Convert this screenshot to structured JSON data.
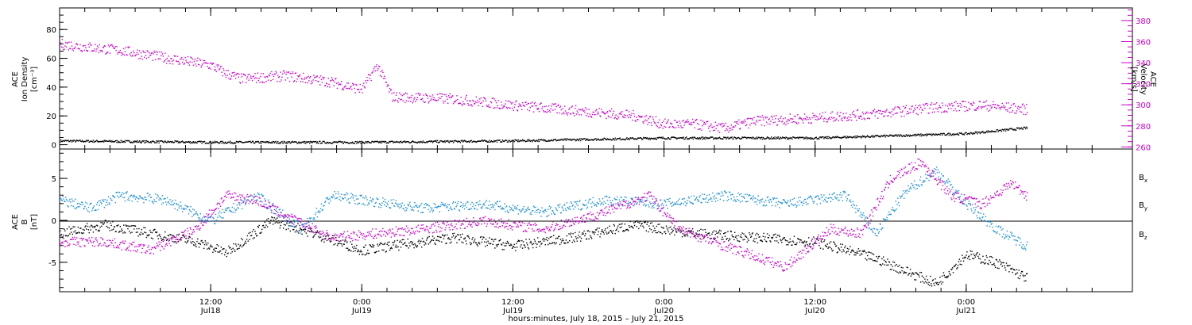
{
  "colors": {
    "black": "#000000",
    "magenta": "#cc00cc",
    "blue": "#1a8fd6"
  },
  "chart_data": [
    {
      "type": "scatter",
      "panel": "top",
      "ylabel_left": [
        "ACE",
        "Ion Density",
        "[cm⁻³]"
      ],
      "ylabel_right": [
        "ACE",
        "Velocity",
        "[km/s]"
      ],
      "ylim_left": [
        -3,
        95
      ],
      "ylim_right": [
        258,
        392
      ],
      "left_ticks": [
        "0",
        "20",
        "40",
        "60",
        "80"
      ],
      "right_ticks": [
        "260",
        "280",
        "300",
        "320",
        "340",
        "360",
        "380"
      ],
      "series": [
        {
          "axis": "left",
          "color": "black",
          "x": [
            0,
            0.5,
            1,
            1.5,
            2,
            2.5,
            3,
            3.2
          ],
          "y": [
            3,
            2,
            2,
            3,
            5,
            5,
            8,
            12
          ]
        },
        {
          "axis": "right",
          "color": "magenta",
          "x": [
            0,
            0.1,
            0.2,
            0.35,
            0.5,
            0.55,
            0.6,
            0.75,
            0.9,
            1.0,
            1.05,
            1.1,
            1.3,
            1.5,
            1.7,
            1.9,
            2.0,
            2.1,
            2.2,
            2.3,
            2.5,
            2.7,
            2.9,
            3.05,
            3.2
          ],
          "y": [
            358,
            355,
            352,
            345,
            338,
            330,
            325,
            328,
            322,
            315,
            338,
            308,
            306,
            300,
            295,
            290,
            282,
            282,
            278,
            285,
            288,
            292,
            298,
            300,
            296
          ]
        }
      ]
    },
    {
      "type": "scatter",
      "panel": "bottom",
      "ylabel_left": [
        "ACE",
        "B",
        "[nT]"
      ],
      "ylim": [
        -8.5,
        8.5
      ],
      "left_ticks": [
        "-5",
        "0",
        "5"
      ],
      "legend": [
        {
          "text": "B",
          "sub": "x",
          "color": "black"
        },
        {
          "text": "B",
          "sub": "y",
          "color": "blue"
        },
        {
          "text": "B",
          "sub": "z",
          "color": "magenta"
        }
      ],
      "series": [
        {
          "name": "Bx",
          "color": "black",
          "x": [
            0,
            0.15,
            0.3,
            0.45,
            0.55,
            0.7,
            0.8,
            1.0,
            1.1,
            1.3,
            1.5,
            1.7,
            1.9,
            2.1,
            2.3,
            2.5,
            2.7,
            2.9,
            3.0,
            3.1,
            3.2
          ],
          "y": [
            -1.5,
            -0.5,
            -1.5,
            -2.5,
            -3.8,
            0,
            -1,
            -3.5,
            -3.0,
            -2.0,
            -3.0,
            -2.0,
            -0.5,
            -1.5,
            -2.0,
            -2.5,
            -4.5,
            -7.5,
            -4.0,
            -5.0,
            -6.8
          ]
        },
        {
          "name": "By",
          "color": "blue",
          "x": [
            0,
            0.1,
            0.2,
            0.35,
            0.5,
            0.65,
            0.8,
            0.9,
            1.0,
            1.2,
            1.4,
            1.6,
            1.8,
            2.0,
            2.2,
            2.4,
            2.6,
            2.7,
            2.8,
            2.9,
            3.0,
            3.1,
            3.2
          ],
          "y": [
            2.5,
            1.5,
            3.0,
            2.5,
            0,
            3.0,
            -1,
            3.0,
            2.5,
            1.5,
            2.0,
            1.0,
            2.5,
            2.0,
            3.0,
            2.0,
            3.0,
            -1.5,
            3.5,
            6.0,
            2.0,
            -1.0,
            -3.0
          ]
        },
        {
          "name": "Bz",
          "color": "magenta",
          "x": [
            0,
            0.15,
            0.3,
            0.45,
            0.55,
            0.65,
            0.75,
            0.9,
            1.05,
            1.2,
            1.4,
            1.6,
            1.8,
            1.95,
            2.05,
            2.2,
            2.4,
            2.55,
            2.65,
            2.75,
            2.85,
            2.95,
            3.05,
            3.15,
            3.2
          ],
          "y": [
            -2.5,
            -2.5,
            -3.5,
            -1.0,
            3.0,
            2.5,
            0.5,
            -2.0,
            -1.5,
            -1.0,
            0,
            -1.0,
            1.0,
            3.0,
            -1.0,
            -3.0,
            -5.5,
            -1.0,
            -1.5,
            5.0,
            7.0,
            3.0,
            2.0,
            4.5,
            3.0
          ]
        }
      ]
    }
  ],
  "x_axis": {
    "range_days": [
      0,
      3.55
    ],
    "ticks": [
      {
        "t": 0.5,
        "time": "12:00",
        "date": "Jul18"
      },
      {
        "t": 1.0,
        "time": "0:00",
        "date": "Jul19"
      },
      {
        "t": 1.5,
        "time": "12:00",
        "date": "Jul19"
      },
      {
        "t": 2.0,
        "time": "0:00",
        "date": "Jul20"
      },
      {
        "t": 2.5,
        "time": "12:00",
        "date": "Jul20"
      },
      {
        "t": 3.0,
        "time": "0:00",
        "date": "Jul21"
      }
    ],
    "title": "hours:minutes, July 18, 2015 – July 21, 2015"
  }
}
